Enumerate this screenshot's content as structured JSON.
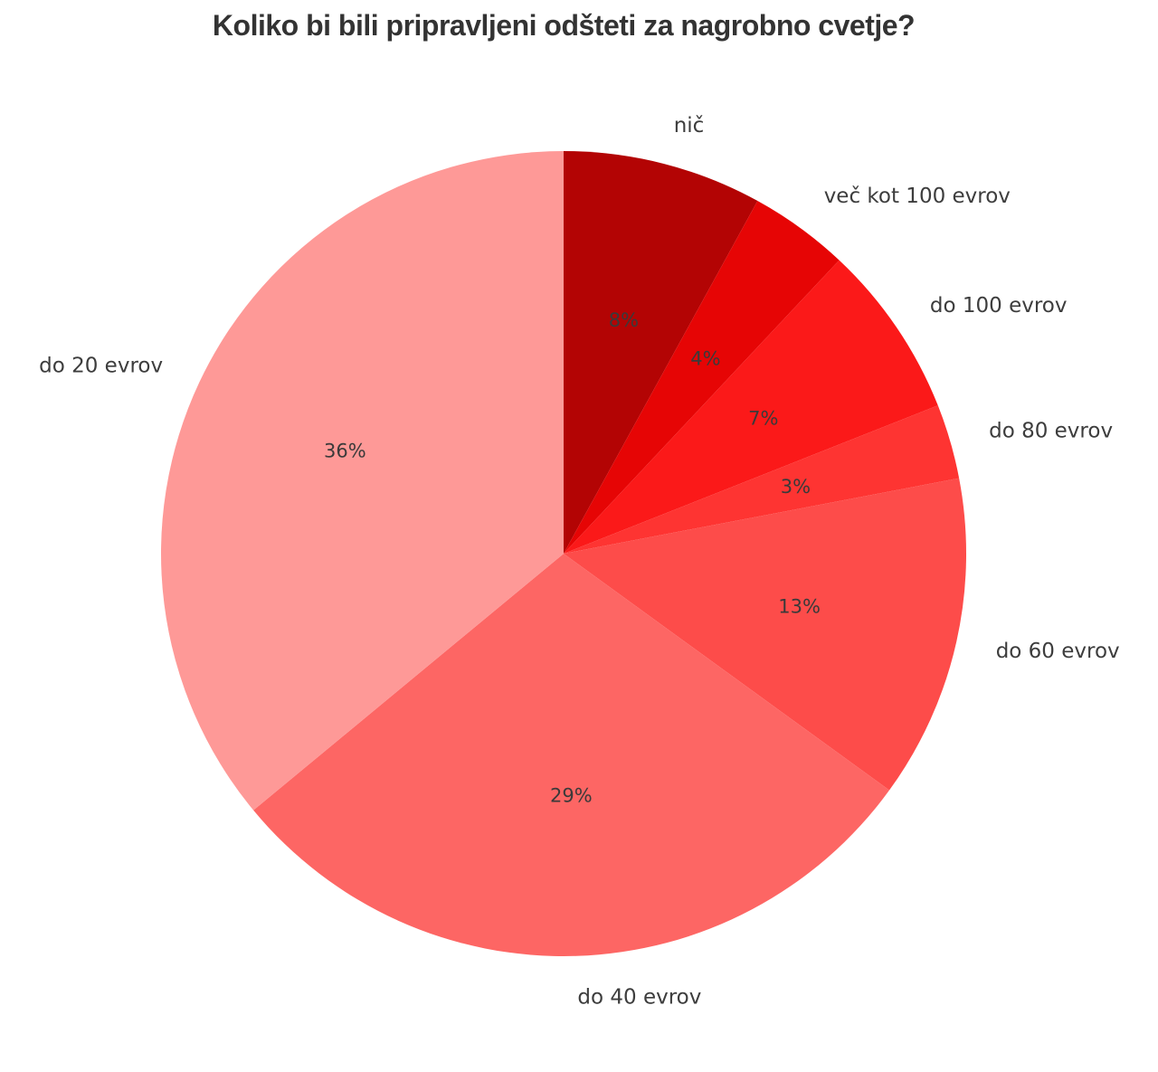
{
  "title": "Koliko bi bili pripravljeni odšteti za nagrobno cvetje?",
  "chart_data": {
    "type": "pie",
    "title": "Koliko bi bili pripravljeni odšteti za nagrobno cvetje?",
    "labels": [
      "nič",
      "več kot 100 evrov",
      "do 100 evrov",
      "do 80 evrov",
      "do 60 evrov",
      "do 40 evrov",
      "do 20 evrov"
    ],
    "values": [
      8,
      4,
      7,
      3,
      13,
      29,
      36
    ],
    "pct_labels": [
      "8%",
      "4%",
      "7%",
      "3%",
      "13%",
      "29%",
      "36%"
    ],
    "colors": [
      "#b30404",
      "#e60505",
      "#fb1919",
      "#fe3432",
      "#fd4c4a",
      "#fd6664",
      "#fe9997"
    ],
    "start_angle_deg": 90,
    "direction": "clockwise",
    "legend": "none",
    "label_color": "#3d3d3d",
    "pct_label_color": "#3a3a3a",
    "title_color": "#333333",
    "background_color": "#ffffff"
  }
}
